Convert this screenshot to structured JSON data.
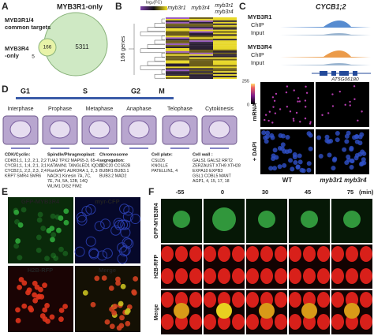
{
  "panel_a": {
    "label": "A",
    "title": "MYB3R1-only",
    "common": [
      "MYB3R1/4",
      "common targets"
    ],
    "r4_only": [
      "MYB3R4",
      "-only"
    ],
    "count_common": "166",
    "count_r1": "5311",
    "count_r4": "5"
  },
  "panel_b": {
    "label": "B",
    "scale_label": "log₂(FC)",
    "genes": "166 genes",
    "columns": [
      "myb3r1",
      "myb3r4",
      "myb3r1",
      "myb3r4"
    ]
  },
  "panel_c": {
    "label": "C",
    "gene": "CYCB1;2",
    "tracks": [
      {
        "name": "MYB3R1",
        "rows": [
          "ChIP",
          "Input"
        ]
      },
      {
        "name": "MYB3R4",
        "rows": [
          "ChIP",
          "Input"
        ]
      }
    ],
    "locus": "AT5G06180",
    "scale": [
      "255",
      "0"
    ],
    "channels": [
      "mRNA",
      "+ DAPI"
    ],
    "genotypes": [
      "WT",
      "myb3r1 myb3r4"
    ]
  },
  "panel_d": {
    "label": "D",
    "phases": [
      "G1",
      "S",
      "G2",
      "M"
    ],
    "stages": [
      "Interphase",
      "Prophase",
      "Metaphase",
      "Anaphase",
      "Telophase",
      "Cytokinesis"
    ],
    "groups": [
      {
        "title": "CDK/Cyclin:",
        "lines": [
          "CDKB1;1, 1;2, 2;1, 2;2",
          "CYCB1;1, 1;4, 2;1, 3;1",
          "CYCB2;1, 2;2, 2;3, 2;4",
          "KRP7 SMR4 SMR6"
        ]
      },
      {
        "title": "Spindle/Phragmoplast:",
        "lines": [
          "TUA2 TPX2 MAP65-3, 65-4",
          "KATANIN1 TANGLED1 IQD28",
          "RanGAP1 AURORA 1, 2, 3",
          "NACK1 Kinesin 7A, 7C,",
          "7E, 7H, 5A, 12B, 14Q",
          "WLIM1 DIS2 FIM2"
        ]
      },
      {
        "title": "Chromosome",
        "lines": [
          "segregation:",
          "CDC20 CCS52B",
          "BUBR1 BUB3.1",
          "BUB3.2 MAD2"
        ]
      },
      {
        "title": "Cell plate:",
        "lines": [
          "CSLD5",
          "KNOLLE",
          "PATELLIN1, 4"
        ]
      },
      {
        "title": "Cell wall :",
        "lines": [
          "GALS1 GALS2 RRT2",
          "ZERZAUST XTH9 XTH28",
          "EXPA10 EXPB3",
          "GSL1 COBL5 MANT",
          "AGP1, 4, 15, 17, 18"
        ]
      }
    ]
  },
  "panel_e": {
    "label": "E",
    "channels": [
      "GFP-MYB3R4",
      "myr-CFP",
      "H2B-RFP",
      "Merge"
    ]
  },
  "panel_f": {
    "label": "F",
    "times": [
      "-55",
      "0",
      "30",
      "45",
      "75"
    ],
    "unit": "(min)",
    "rows": [
      "GFP-MYB3R4",
      "H2B-RFP",
      "Merge"
    ]
  }
}
